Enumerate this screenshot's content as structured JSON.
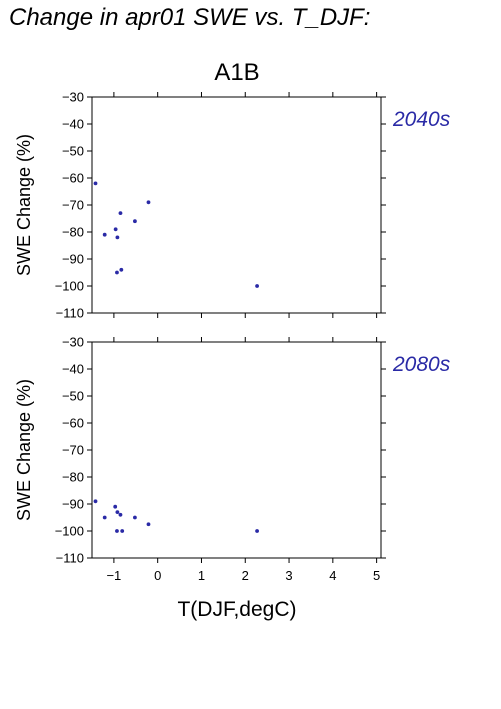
{
  "header": "Change in apr01 SWE vs. T_DJF:",
  "scenario": "A1B",
  "xlabel": "T(DJF,degC)",
  "colors": {
    "points": "#2a2aa6",
    "period_label": "#2a2aa6"
  },
  "chart_data": [
    {
      "type": "scatter",
      "period": "2040s",
      "ylabel": "SWE Change (%)",
      "xlim": [
        -1.5,
        5.1
      ],
      "ylim": [
        -110,
        -30
      ],
      "xticks": [
        -1,
        0,
        1,
        2,
        3,
        4,
        5
      ],
      "yticks": [
        -30,
        -40,
        -50,
        -60,
        -70,
        -80,
        -90,
        -100,
        -110
      ],
      "points": [
        {
          "x": -1.42,
          "y": -62
        },
        {
          "x": -1.21,
          "y": -81
        },
        {
          "x": -0.96,
          "y": -79
        },
        {
          "x": -0.92,
          "y": -82
        },
        {
          "x": -0.85,
          "y": -73
        },
        {
          "x": -0.93,
          "y": -95
        },
        {
          "x": -0.83,
          "y": -94
        },
        {
          "x": -0.52,
          "y": -76
        },
        {
          "x": -0.21,
          "y": -69
        },
        {
          "x": 2.27,
          "y": -100
        }
      ]
    },
    {
      "type": "scatter",
      "period": "2080s",
      "ylabel": "SWE Change (%)",
      "xlim": [
        -1.5,
        5.1
      ],
      "ylim": [
        -110,
        -30
      ],
      "xticks": [
        -1,
        0,
        1,
        2,
        3,
        4,
        5
      ],
      "yticks": [
        -30,
        -40,
        -50,
        -60,
        -70,
        -80,
        -90,
        -100,
        -110
      ],
      "points": [
        {
          "x": -1.42,
          "y": -89
        },
        {
          "x": -1.21,
          "y": -95
        },
        {
          "x": -0.97,
          "y": -91
        },
        {
          "x": -0.92,
          "y": -93
        },
        {
          "x": -0.85,
          "y": -94
        },
        {
          "x": -0.93,
          "y": -100
        },
        {
          "x": -0.81,
          "y": -100
        },
        {
          "x": -0.52,
          "y": -95
        },
        {
          "x": -0.21,
          "y": -97.5
        },
        {
          "x": 2.27,
          "y": -100
        }
      ]
    }
  ]
}
